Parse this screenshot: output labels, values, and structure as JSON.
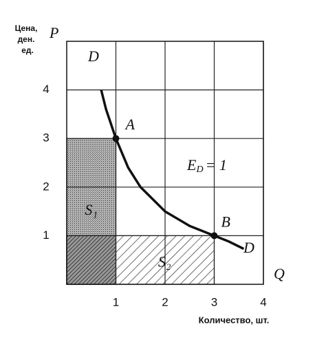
{
  "chart_data": {
    "type": "demand-curve",
    "y_label_lines": [
      "Цена,",
      "ден.",
      "ед."
    ],
    "y_axis_symbol": "P",
    "x_axis_symbol": "Q",
    "x_label": "Количество, шт.",
    "curve_label_start": "D",
    "curve_label_end": "D",
    "xlim": [
      0,
      4
    ],
    "ylim": [
      0,
      5
    ],
    "xticks": [
      1,
      2,
      3,
      4
    ],
    "yticks": [
      1,
      2,
      3,
      4
    ],
    "grid": true,
    "curve": {
      "x": [
        0.7,
        0.8,
        1,
        1.25,
        1.5,
        2,
        2.5,
        3,
        3.3,
        3.6
      ],
      "y": [
        4.0,
        3.6,
        3,
        2.4,
        2,
        1.5,
        1.2,
        1,
        0.88,
        0.73
      ]
    },
    "points": [
      {
        "label": "A",
        "x": 1,
        "y": 3
      },
      {
        "label": "B",
        "x": 3,
        "y": 1
      }
    ],
    "areas": [
      {
        "label": "S₁",
        "point": 0
      },
      {
        "label": "S₂",
        "point": 1
      }
    ],
    "elasticity": {
      "main": "E",
      "sub": "D",
      "rest": "= 1"
    }
  }
}
